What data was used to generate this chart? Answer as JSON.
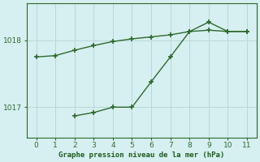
{
  "line1_x": [
    0,
    1,
    2,
    3,
    4,
    5,
    6,
    7,
    8,
    9,
    10,
    11
  ],
  "line1_y": [
    1017.75,
    1017.77,
    1017.85,
    1017.92,
    1017.98,
    1018.02,
    1018.05,
    1018.08,
    1018.13,
    1018.15,
    1018.13,
    1018.13
  ],
  "line2_x": [
    2,
    3,
    4,
    5,
    6,
    7,
    8,
    9,
    10,
    11
  ],
  "line2_y": [
    1016.87,
    1016.92,
    1017.0,
    1017.0,
    1017.38,
    1017.75,
    1018.13,
    1018.27,
    1018.13,
    1018.13
  ],
  "line_color": "#2d6a2d",
  "bg_color": "#d6eff0",
  "grid_color": "#b8d8da",
  "xlabel": "Graphe pression niveau de la mer (hPa)",
  "xlabel_color": "#1a5c1a",
  "tick_color": "#2d6a2d",
  "xlim": [
    -0.5,
    11.5
  ],
  "ylim": [
    1016.55,
    1018.55
  ],
  "yticks": [
    1017,
    1018
  ],
  "xticks": [
    0,
    1,
    2,
    3,
    4,
    5,
    6,
    7,
    8,
    9,
    10,
    11
  ]
}
